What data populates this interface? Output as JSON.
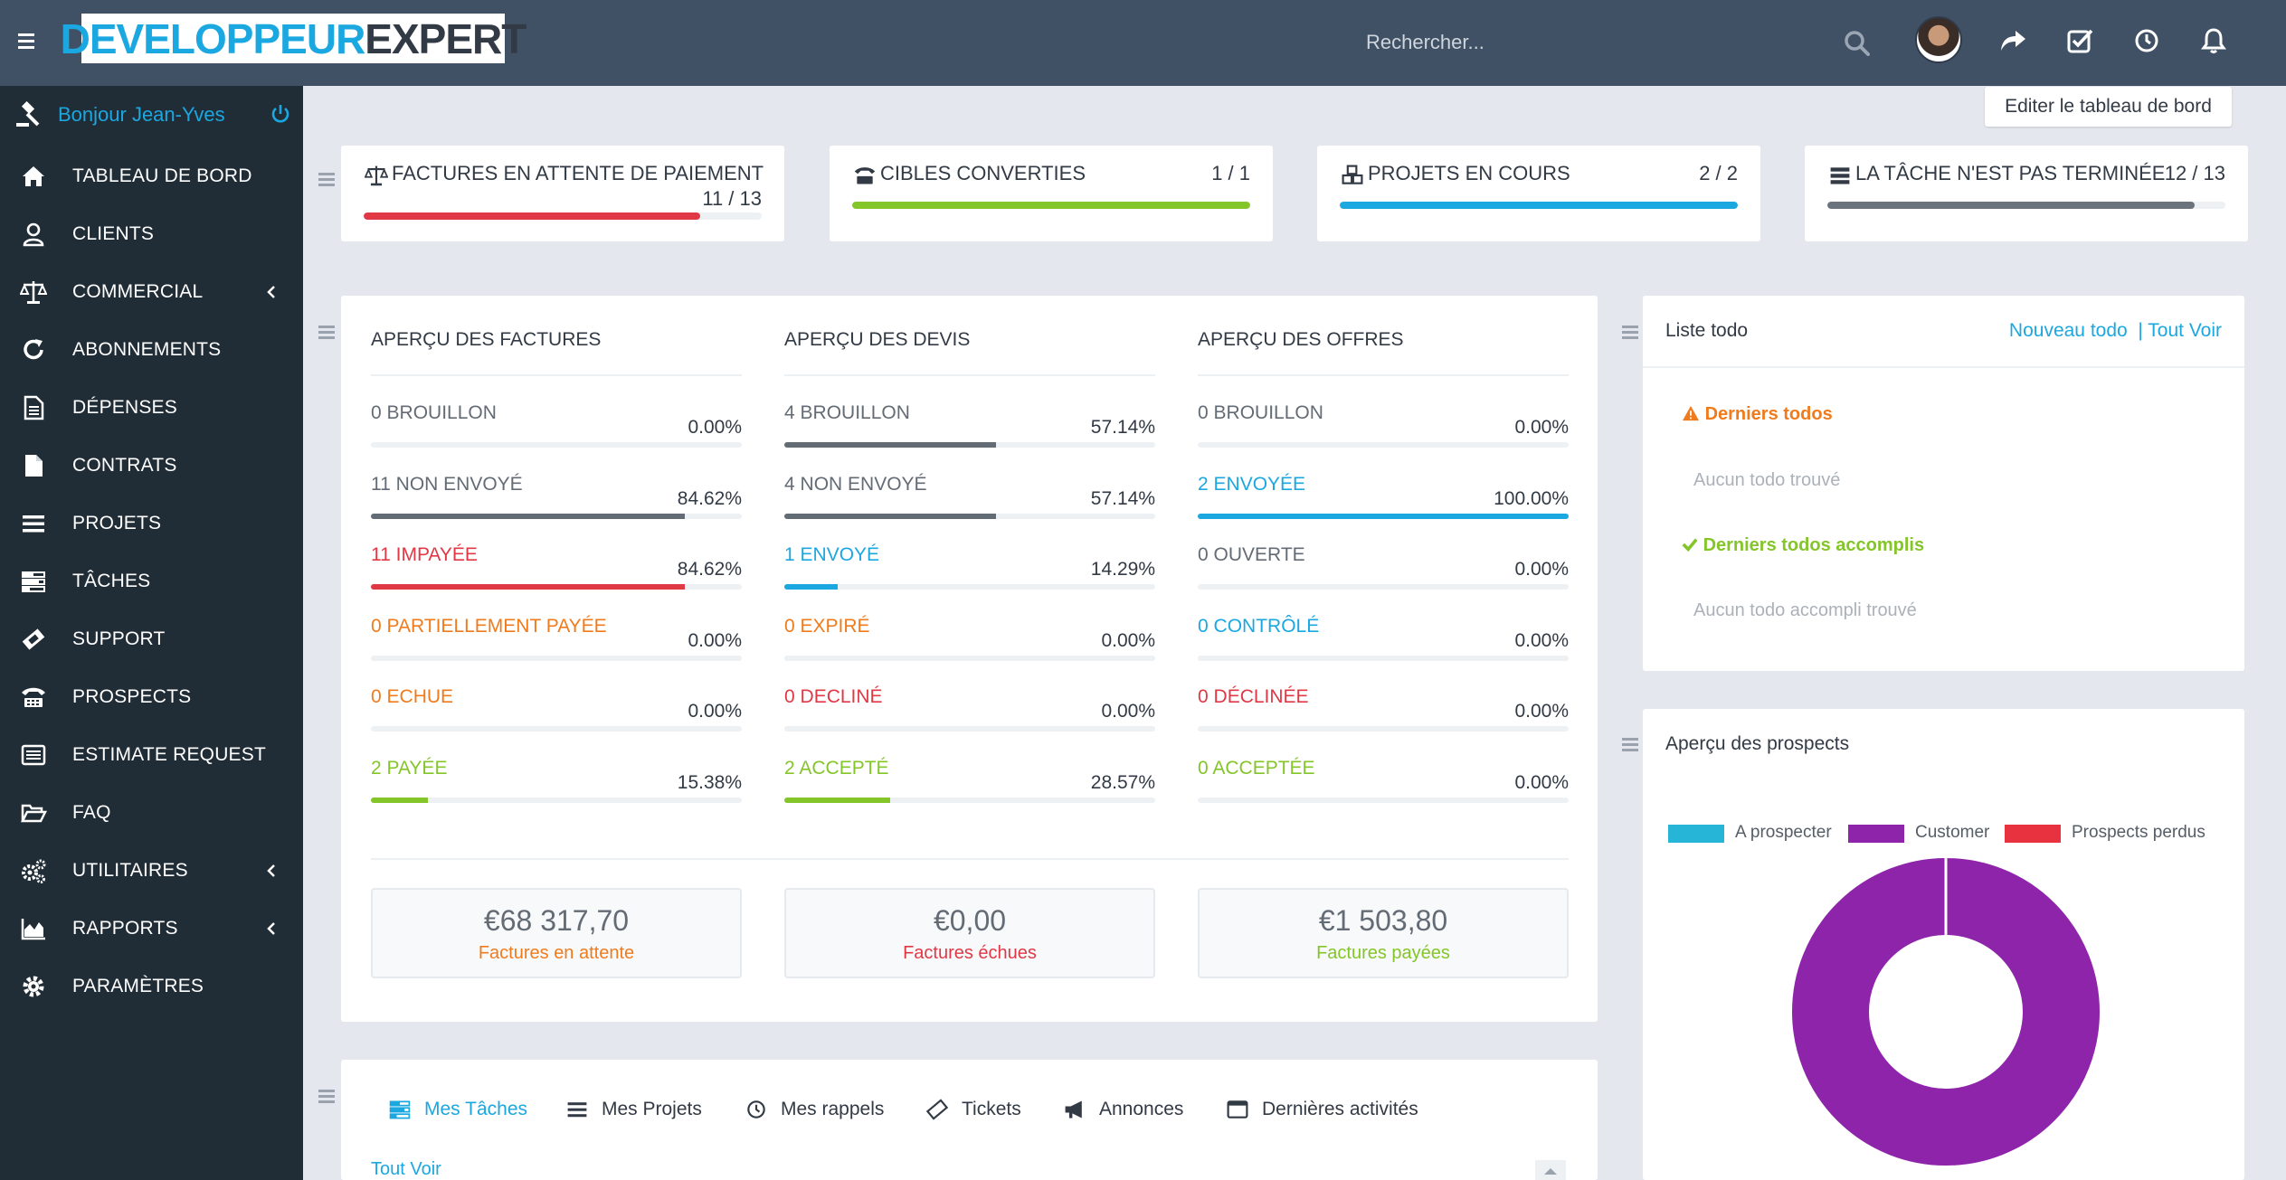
{
  "header": {
    "logo_part1": "DEVELOPPEUR",
    "logo_part2": "EXPERT",
    "search_placeholder": "Rechercher..."
  },
  "sidebar": {
    "greeting": "Bonjour Jean-Yves",
    "items": [
      {
        "label": "TABLEAU DE BORD",
        "icon": "home-icon"
      },
      {
        "label": "CLIENTS",
        "icon": "user-icon"
      },
      {
        "label": "COMMERCIAL",
        "icon": "balance-scale-icon"
      },
      {
        "label": "ABONNEMENTS",
        "icon": "refresh-icon"
      },
      {
        "label": "DÉPENSES",
        "icon": "file-text-icon"
      },
      {
        "label": "CONTRATS",
        "icon": "file-icon"
      },
      {
        "label": "PROJETS",
        "icon": "bars-icon"
      },
      {
        "label": "TÂCHES",
        "icon": "tasks-icon"
      },
      {
        "label": "SUPPORT",
        "icon": "ticket-icon"
      },
      {
        "label": "PROSPECTS",
        "icon": "tty-icon"
      },
      {
        "label": "ESTIMATE REQUEST",
        "icon": "list-alt-icon"
      },
      {
        "label": "FAQ",
        "icon": "folder-open-icon"
      },
      {
        "label": "UTILITAIRES",
        "icon": "cogs-icon"
      },
      {
        "label": "RAPPORTS",
        "icon": "area-chart-icon"
      },
      {
        "label": "PARAMÈTRES",
        "icon": "cog-icon"
      }
    ]
  },
  "edit_dashboard_label": "Editer le tableau de bord",
  "stats": [
    {
      "title": "FACTURES EN ATTENTE DE PAIEMENT",
      "value": "11 / 13",
      "progress": 0.846,
      "color": "#e03845",
      "icon": "balance-scale-icon"
    },
    {
      "title": "CIBLES CONVERTIES",
      "value": "1 / 1",
      "progress": 1.0,
      "color": "#84c529",
      "icon": "tty-icon"
    },
    {
      "title": "PROJETS EN COURS",
      "value": "2 / 2",
      "progress": 1.0,
      "color": "#1ba7e0",
      "icon": "cubes-icon"
    },
    {
      "title": "LA TÂCHE N'EST PAS TERMINÉE",
      "value": "12 / 13",
      "progress": 0.923,
      "color": "#6b737d",
      "icon": "tasks-icon"
    }
  ],
  "overview": {
    "invoices": {
      "title": "APERÇU DES FACTURES",
      "rows": [
        {
          "count": "0",
          "label": "BROUILLON",
          "pct": "0.00%",
          "progress": 0.0,
          "color": "#636b75"
        },
        {
          "count": "11",
          "label": "NON ENVOYÉ",
          "pct": "84.62%",
          "progress": 0.8462,
          "color": "#636b75"
        },
        {
          "count": "11",
          "label": "IMPAYÉE",
          "pct": "84.62%",
          "progress": 0.8462,
          "color": "#e03845"
        },
        {
          "count": "0",
          "label": "PARTIELLEMENT PAYÉE",
          "pct": "0.00%",
          "progress": 0.0,
          "color": "#f07b1d"
        },
        {
          "count": "0",
          "label": "ECHUE",
          "pct": "0.00%",
          "progress": 0.0,
          "color": "#f07b1d"
        },
        {
          "count": "2",
          "label": "PAYÉE",
          "pct": "15.38%",
          "progress": 0.1538,
          "color": "#84c529"
        }
      ],
      "total": {
        "amount": "€68 317,70",
        "label": "Factures en attente",
        "color": "#f07b1d"
      }
    },
    "estimates": {
      "title": "APERÇU DES DEVIS",
      "rows": [
        {
          "count": "4",
          "label": "BROUILLON",
          "pct": "57.14%",
          "progress": 0.5714,
          "color": "#636b75"
        },
        {
          "count": "4",
          "label": "NON ENVOYÉ",
          "pct": "57.14%",
          "progress": 0.5714,
          "color": "#636b75"
        },
        {
          "count": "1",
          "label": "ENVOYÉ",
          "pct": "14.29%",
          "progress": 0.1429,
          "color": "#1ba7e0"
        },
        {
          "count": "0",
          "label": "EXPIRÉ",
          "pct": "0.00%",
          "progress": 0.0,
          "color": "#f07b1d"
        },
        {
          "count": "0",
          "label": "DECLINÉ",
          "pct": "0.00%",
          "progress": 0.0,
          "color": "#e03845"
        },
        {
          "count": "2",
          "label": "ACCEPTÉ",
          "pct": "28.57%",
          "progress": 0.2857,
          "color": "#84c529"
        }
      ],
      "total": {
        "amount": "€0,00",
        "label": "Factures échues",
        "color": "#e03845"
      }
    },
    "proposals": {
      "title": "APERÇU DES OFFRES",
      "rows": [
        {
          "count": "0",
          "label": "BROUILLON",
          "pct": "0.00%",
          "progress": 0.0,
          "color": "#636b75"
        },
        {
          "count": "2",
          "label": "ENVOYÉE",
          "pct": "100.00%",
          "progress": 1.0,
          "color": "#1ba7e0"
        },
        {
          "count": "0",
          "label": "OUVERTE",
          "pct": "0.00%",
          "progress": 0.0,
          "color": "#636b75"
        },
        {
          "count": "0",
          "label": "CONTRÔLÉ",
          "pct": "0.00%",
          "progress": 0.0,
          "color": "#1ba7e0"
        },
        {
          "count": "0",
          "label": "DÉCLINÉE",
          "pct": "0.00%",
          "progress": 0.0,
          "color": "#e03845"
        },
        {
          "count": "0",
          "label": "ACCEPTÉE",
          "pct": "0.00%",
          "progress": 0.0,
          "color": "#84c529"
        }
      ],
      "total": {
        "amount": "€1 503,80",
        "label": "Factures payées",
        "color": "#84c529"
      }
    }
  },
  "todo": {
    "title": "Liste todo",
    "new_link": "Nouveau todo",
    "all_link": "| Tout Voir",
    "latest_heading": "Derniers todos",
    "latest_empty": "Aucun todo trouvé",
    "done_heading": "Derniers todos accomplis",
    "done_empty": "Aucun todo accompli trouvé"
  },
  "prospects": {
    "title": "Aperçu des prospects",
    "legend": [
      {
        "label": "A prospecter",
        "color": "#26b5d6"
      },
      {
        "label": "Customer",
        "color": "#8e24aa"
      },
      {
        "label": "Prospects perdus",
        "color": "#e8323f"
      }
    ]
  },
  "chart_data": {
    "type": "pie",
    "categories": [
      "A prospecter",
      "Customer",
      "Prospects perdus"
    ],
    "values": [
      0,
      1,
      0
    ],
    "colors": [
      "#26b5d6",
      "#8e24aa",
      "#e8323f"
    ],
    "legend": "top"
  },
  "tabs": [
    {
      "label": "Mes Tâches",
      "icon": "tasks-icon",
      "active": true
    },
    {
      "label": "Mes Projets",
      "icon": "bars-icon"
    },
    {
      "label": "Mes rappels",
      "icon": "clock-icon"
    },
    {
      "label": "Tickets",
      "icon": "ticket-icon"
    },
    {
      "label": "Annonces",
      "icon": "bullhorn-icon"
    },
    {
      "label": "Dernières activités",
      "icon": "window-icon"
    }
  ],
  "tasks_all_link": "Tout Voir"
}
